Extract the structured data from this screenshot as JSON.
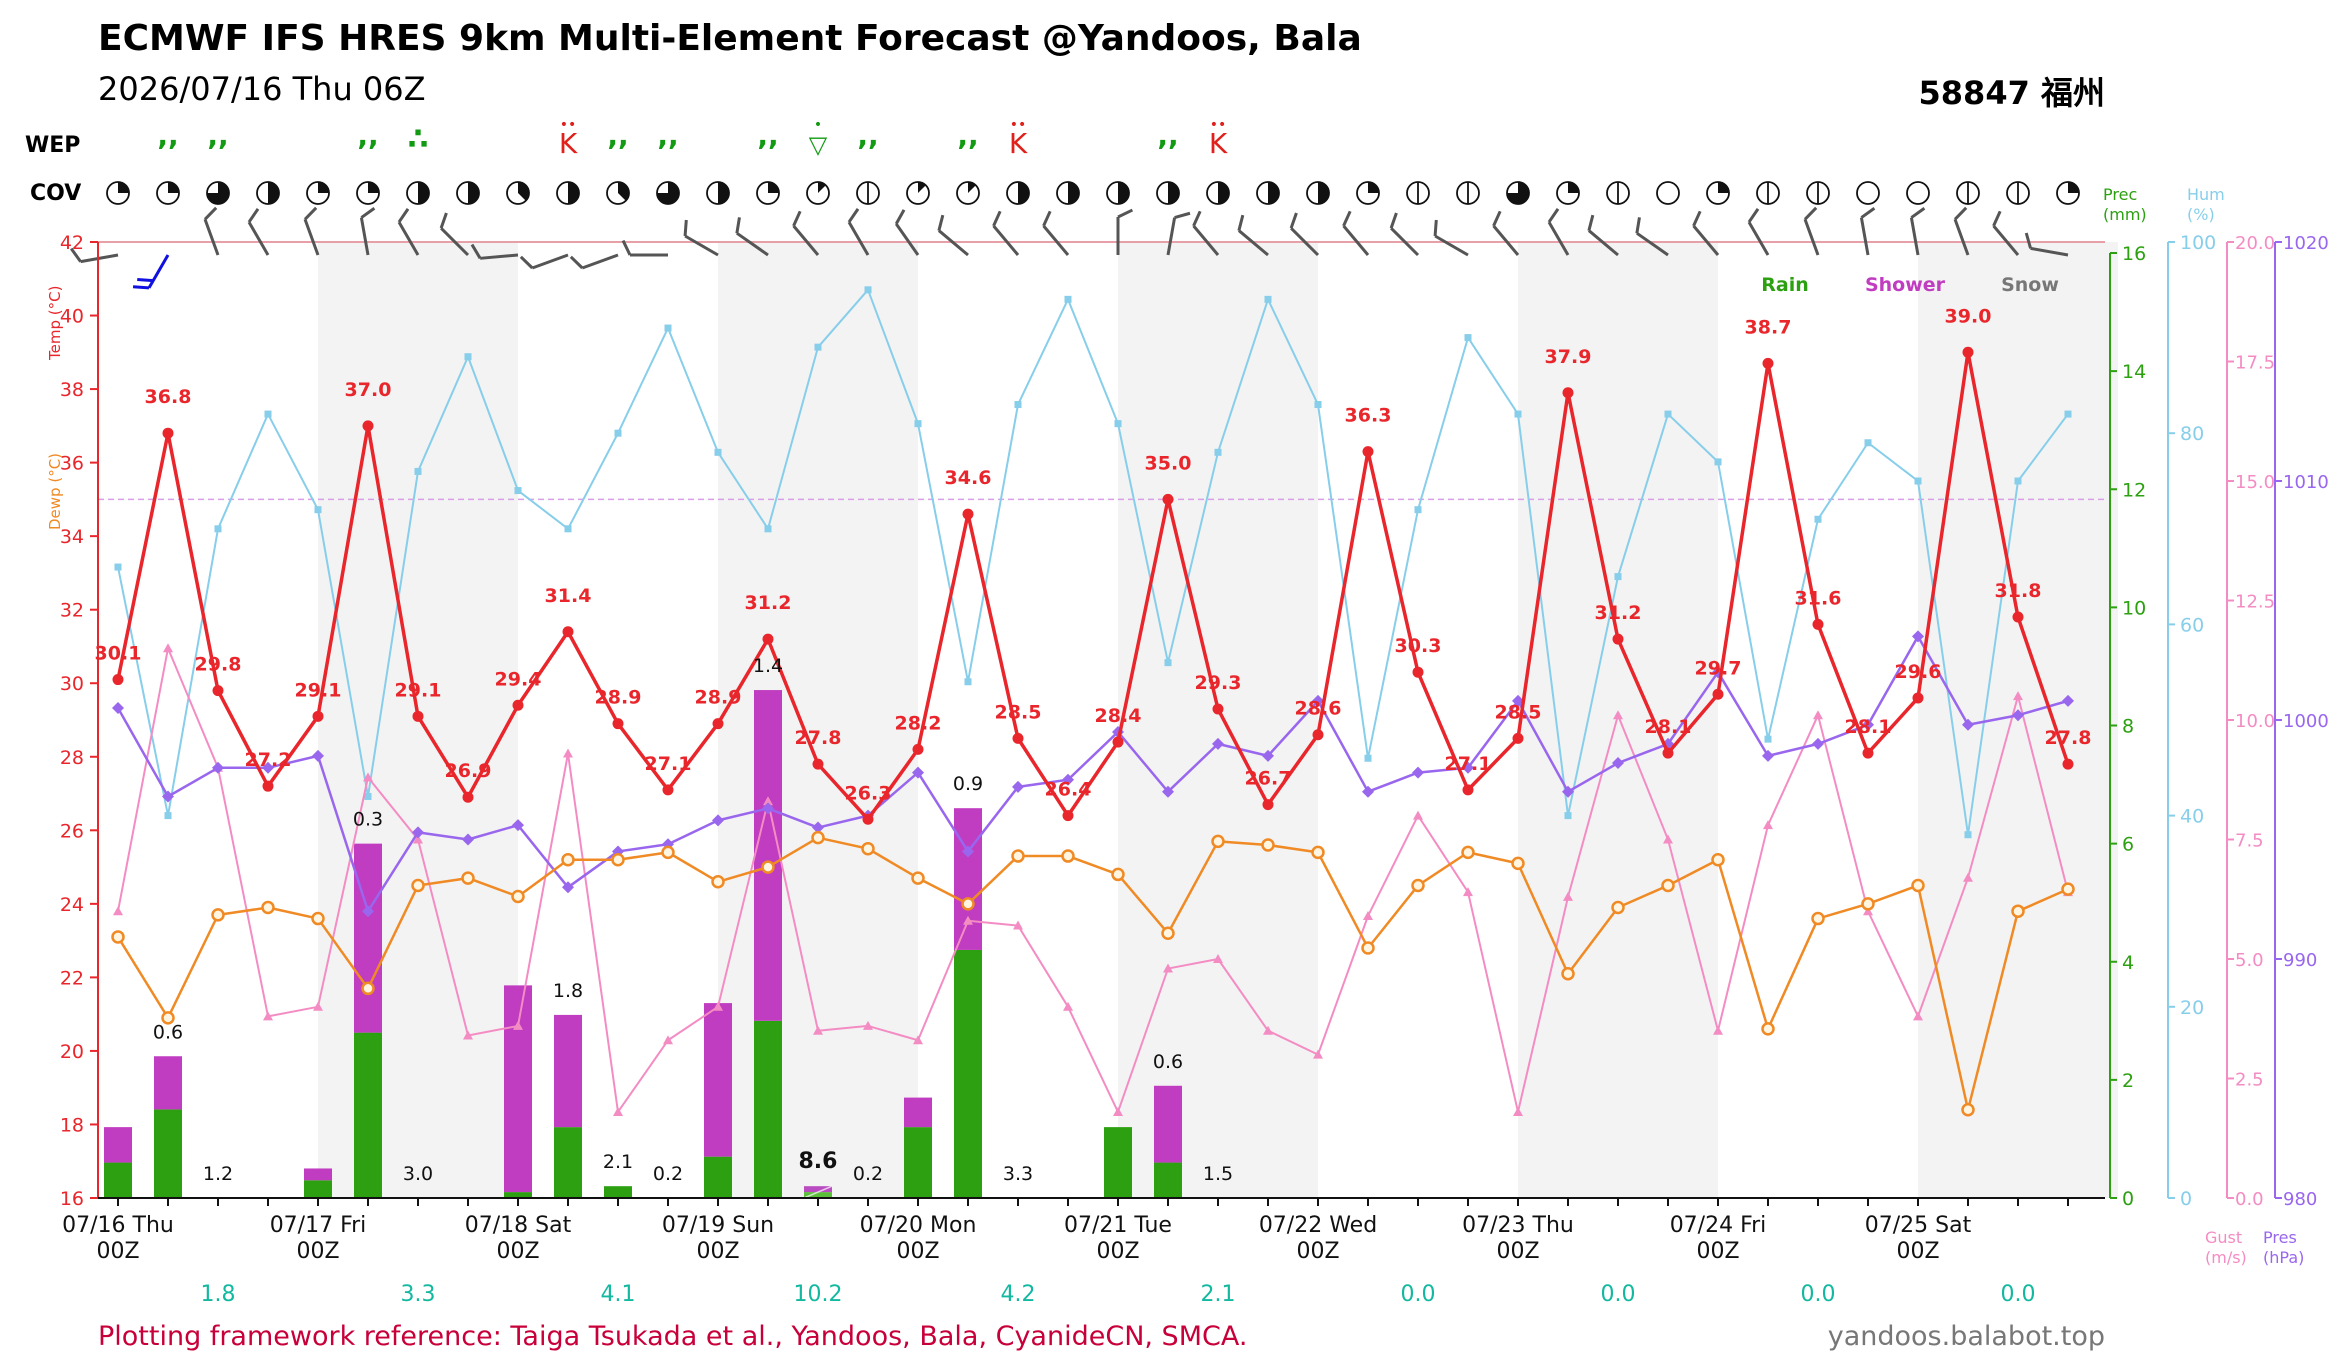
{
  "header": {
    "title": "ECMWF IFS HRES 9km Multi-Element Forecast @Yandoos, Bala",
    "subtitle": "2026/07/16 Thu 06Z",
    "station": "58847 福州",
    "reference": "Plotting framework reference: Taiga Tsukada et al., Yandoos, Bala, CyanideCN, SMCA.",
    "site": "yandoos.balabot.top"
  },
  "row_labels": {
    "wep": "WEP",
    "cov": "COV"
  },
  "legend": {
    "rain": "Rain",
    "shower": "Shower",
    "snow": "Snow"
  },
  "axes": {
    "temp_label": "Temp (°C)",
    "dewp_label": "Dewp (°C)",
    "prec_label": [
      "Prec",
      "(mm)"
    ],
    "hum_label": [
      "Hum",
      "(%)"
    ],
    "gust_label": [
      "Gust",
      "(m/s)"
    ],
    "pres_label": [
      "Pres",
      "(hPa)"
    ],
    "temp_ticks": [
      "16",
      "18",
      "20",
      "22",
      "24",
      "26",
      "28",
      "30",
      "32",
      "34",
      "36",
      "38",
      "40",
      "42"
    ],
    "prec_ticks": [
      "0",
      "2",
      "4",
      "6",
      "8",
      "10",
      "12",
      "14",
      "16"
    ],
    "hum_ticks": [
      "0",
      "20",
      "40",
      "60",
      "80",
      "100"
    ],
    "gust_ticks": [
      "0.0",
      "2.5",
      "5.0",
      "7.5",
      "10.0",
      "12.5",
      "15.0",
      "17.5",
      "20.0"
    ],
    "pres_ticks": [
      "980",
      "990",
      "1000",
      "1010",
      "1020"
    ],
    "day_labels": [
      {
        "date": "07/16 Thu",
        "hour": "00Z",
        "total": "1.8"
      },
      {
        "date": "07/17 Fri",
        "hour": "00Z",
        "total": "3.3"
      },
      {
        "date": "07/18 Sat",
        "hour": "00Z",
        "total": "4.1"
      },
      {
        "date": "07/19 Sun",
        "hour": "00Z",
        "total": "10.2"
      },
      {
        "date": "07/20 Mon",
        "hour": "00Z",
        "total": "4.2"
      },
      {
        "date": "07/21 Tue",
        "hour": "00Z",
        "total": "2.1"
      },
      {
        "date": "07/22 Wed",
        "hour": "00Z",
        "total": "0.0"
      },
      {
        "date": "07/23 Thu",
        "hour": "00Z",
        "total": "0.0"
      },
      {
        "date": "07/24 Fri",
        "hour": "00Z",
        "total": "0.0"
      },
      {
        "date": "07/25 Sat",
        "hour": "00Z",
        "total": "0.0"
      }
    ]
  },
  "colors": {
    "temp": "#e8262b",
    "dewp": "#f08a24",
    "hum": "#87ceeb",
    "gust": "#f48cc4",
    "pres": "#9966ee",
    "rain": "#2ca011",
    "shower": "#c03cc0",
    "snow": "#777777",
    "total": "#13b8a0",
    "reference": "#c8003a"
  },
  "chart_data": {
    "type": "line",
    "x": [
      "16 00Z",
      "16 06Z",
      "16 12Z",
      "16 18Z",
      "17 00Z",
      "17 06Z",
      "17 12Z",
      "17 18Z",
      "18 00Z",
      "18 06Z",
      "18 12Z",
      "18 18Z",
      "19 00Z",
      "19 06Z",
      "19 12Z",
      "19 18Z",
      "20 00Z",
      "20 06Z",
      "20 12Z",
      "20 18Z",
      "21 00Z",
      "21 06Z",
      "21 12Z",
      "21 18Z",
      "22 00Z",
      "22 06Z",
      "22 12Z",
      "22 18Z",
      "23 00Z",
      "23 06Z",
      "23 12Z",
      "23 18Z",
      "24 00Z",
      "24 06Z",
      "24 12Z",
      "24 18Z",
      "25 00Z",
      "25 06Z",
      "25 12Z",
      "25 18Z"
    ],
    "temperature": [
      30.1,
      36.8,
      29.8,
      27.2,
      29.1,
      37.0,
      29.1,
      26.9,
      29.4,
      31.4,
      28.9,
      27.1,
      28.9,
      31.2,
      27.8,
      26.3,
      28.2,
      34.6,
      28.5,
      26.4,
      28.4,
      35.0,
      29.3,
      26.7,
      28.6,
      36.3,
      30.3,
      27.1,
      28.5,
      37.9,
      31.2,
      28.1,
      29.7,
      38.7,
      31.6,
      28.1,
      29.6,
      39.0,
      31.8,
      27.8
    ],
    "dewpoint": [
      23.1,
      20.9,
      23.7,
      23.9,
      23.6,
      21.7,
      24.5,
      24.7,
      24.2,
      25.2,
      25.2,
      25.4,
      24.6,
      25.0,
      25.8,
      25.5,
      24.7,
      24.0,
      25.3,
      25.3,
      24.8,
      23.2,
      25.7,
      25.6,
      25.4,
      22.8,
      24.5,
      25.4,
      25.1,
      22.1,
      23.9,
      24.5,
      25.2,
      20.6,
      23.6,
      24.0,
      24.5,
      18.4,
      23.8,
      24.4
    ],
    "humidity": [
      66,
      40,
      70,
      82,
      72,
      42,
      76,
      88,
      74,
      70,
      80,
      91,
      78,
      70,
      89,
      95,
      81,
      54,
      83,
      94,
      81,
      56,
      78,
      94,
      83,
      46,
      72,
      90,
      82,
      40,
      65,
      82,
      77,
      48,
      71,
      79,
      75,
      38,
      75,
      82
    ],
    "gust": [
      6.0,
      11.5,
      9.0,
      3.8,
      4.0,
      8.8,
      7.5,
      3.4,
      3.6,
      9.3,
      1.8,
      3.3,
      4.0,
      8.3,
      3.5,
      3.6,
      3.3,
      5.8,
      5.7,
      4.0,
      1.8,
      4.8,
      5.0,
      3.5,
      3.0,
      5.9,
      8.0,
      6.4,
      1.8,
      6.3,
      10.1,
      7.5,
      3.5,
      7.8,
      10.1,
      6.0,
      3.8,
      6.7,
      10.5,
      6.4
    ],
    "pressure": [
      1000.5,
      996.8,
      998.0,
      998.0,
      998.5,
      992.0,
      995.3,
      995.0,
      995.6,
      993.0,
      994.5,
      994.8,
      995.8,
      996.3,
      995.5,
      996.0,
      997.8,
      994.5,
      997.2,
      997.5,
      999.5,
      997.0,
      999.0,
      998.5,
      1000.8,
      997.0,
      997.8,
      998.0,
      1000.8,
      997.0,
      998.2,
      999.0,
      1002.0,
      998.5,
      999.0,
      999.8,
      1003.5,
      999.8,
      1000.2,
      1000.8
    ],
    "precip_rain": [
      0.6,
      1.5,
      0,
      0,
      0.3,
      2.8,
      0,
      0,
      0.1,
      1.2,
      0.2,
      0,
      0.7,
      3.0,
      0.1,
      0,
      1.2,
      4.2,
      0,
      0,
      1.2,
      0.6,
      0,
      0,
      0,
      0,
      0,
      0,
      0,
      0,
      0,
      0,
      0,
      0,
      0,
      0,
      0,
      0,
      0,
      0
    ],
    "precip_shower": [
      0.6,
      0.9,
      0,
      0,
      0.2,
      3.2,
      0,
      0,
      3.5,
      1.9,
      0.0,
      0,
      2.6,
      5.6,
      0.1,
      0,
      0.5,
      2.4,
      0,
      0,
      0,
      1.3,
      0,
      0,
      0,
      0,
      0,
      0,
      0,
      0,
      0,
      0,
      0,
      0,
      0,
      0,
      0,
      0,
      0,
      0
    ],
    "precip_labels": [
      "",
      "0.6",
      "1.2",
      "",
      "",
      "0.3",
      "3.0",
      "",
      "",
      "1.8",
      "2.1",
      "0.2",
      "",
      "1.4",
      "8.6",
      "0.2",
      "",
      "0.9",
      "3.3",
      "",
      "",
      "0.6",
      "1.5",
      "",
      "",
      "",
      "",
      "",
      "",
      "",
      "",
      "",
      "",
      "",
      "",
      "",
      "",
      "",
      "",
      ""
    ],
    "cloud_cover": [
      0.25,
      0.25,
      0.75,
      0.5,
      0.25,
      0.25,
      0.5,
      0.5,
      0.375,
      0.5,
      0.375,
      0.75,
      0.5,
      0.25,
      0.125,
      0.0625,
      0.125,
      0.125,
      0.5,
      0.5,
      0.5,
      0.5,
      0.5,
      0.5,
      0.5,
      0.25,
      0.0625,
      0.0625,
      0.75,
      0.25,
      0.0625,
      0.0,
      0.25,
      0.0625,
      0.0625,
      0.0,
      0.0,
      0.0625,
      0.0625,
      0.25
    ],
    "weather": [
      "",
      "rain",
      "rain",
      "",
      "",
      "rain",
      "shower",
      "",
      "",
      "storm",
      "rain",
      "rain",
      "",
      "rain",
      "hail",
      "rain",
      "",
      "rain",
      "storm",
      "",
      "",
      "rain",
      "storm",
      "",
      "",
      "",
      "",
      "",
      "",
      "",
      "",
      "",
      "",
      "",
      "",
      "",
      "",
      "",
      "",
      ""
    ],
    "wind_dir": [
      260,
      210,
      340,
      330,
      340,
      350,
      330,
      315,
      265,
      250,
      250,
      270,
      300,
      305,
      320,
      330,
      325,
      310,
      320,
      320,
      0,
      10,
      320,
      310,
      315,
      320,
      315,
      300,
      320,
      330,
      310,
      305,
      320,
      330,
      340,
      350,
      350,
      340,
      320,
      280
    ],
    "wind_speed": [
      10,
      20,
      10,
      10,
      10,
      10,
      10,
      10,
      10,
      10,
      10,
      10,
      10,
      10,
      10,
      10,
      10,
      10,
      10,
      10,
      10,
      10,
      10,
      10,
      10,
      10,
      10,
      10,
      10,
      10,
      10,
      10,
      10,
      10,
      10,
      10,
      10,
      10,
      10,
      10
    ],
    "ylim_temp": [
      16,
      42
    ],
    "ylim_prec": [
      0,
      16
    ],
    "ylim_hum": [
      0,
      100
    ],
    "ylim_gust": [
      0,
      20
    ],
    "ylim_pres": [
      980,
      1020
    ]
  }
}
